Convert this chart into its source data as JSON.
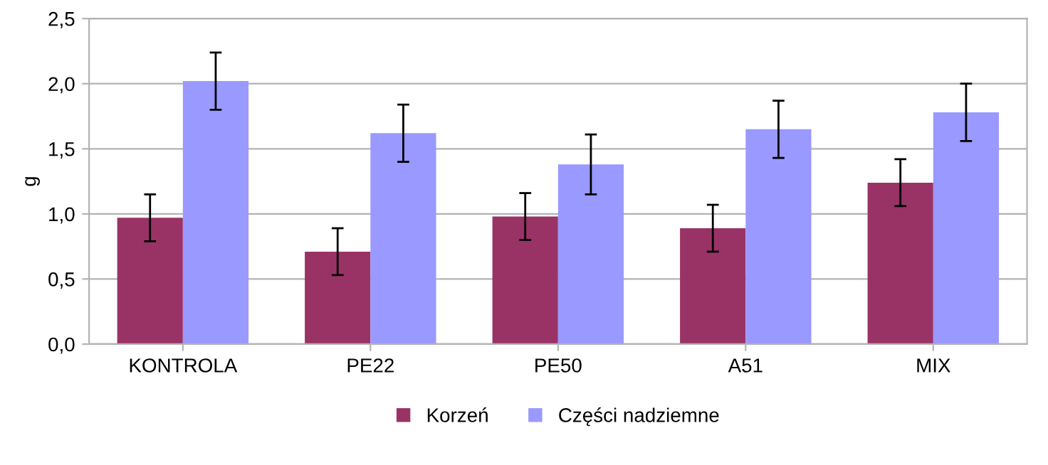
{
  "chart_data": {
    "type": "bar",
    "ylabel": "g",
    "categories": [
      "KONTROLA",
      "PE22",
      "PE50",
      "A51",
      "MIX"
    ],
    "series": [
      {
        "name": "Korzeń",
        "color": "#993366",
        "values": [
          0.97,
          0.71,
          0.98,
          0.89,
          1.24
        ],
        "errors": [
          0.18,
          0.18,
          0.18,
          0.18,
          0.18
        ]
      },
      {
        "name": "Części nadziemne",
        "color": "#9999ff",
        "values": [
          2.02,
          1.62,
          1.38,
          1.65,
          1.78
        ],
        "errors": [
          0.22,
          0.22,
          0.23,
          0.22,
          0.22
        ]
      }
    ],
    "ylim": [
      0,
      2.5
    ],
    "yticks": [
      {
        "value": 0,
        "label": "0,0"
      },
      {
        "value": 0.5,
        "label": "0,5"
      },
      {
        "value": 1,
        "label": "1,0"
      },
      {
        "value": 1.5,
        "label": "1,5"
      },
      {
        "value": 2,
        "label": "2,0"
      },
      {
        "value": 2.5,
        "label": "2,5"
      }
    ],
    "grid": "y",
    "legend": "bottom"
  }
}
